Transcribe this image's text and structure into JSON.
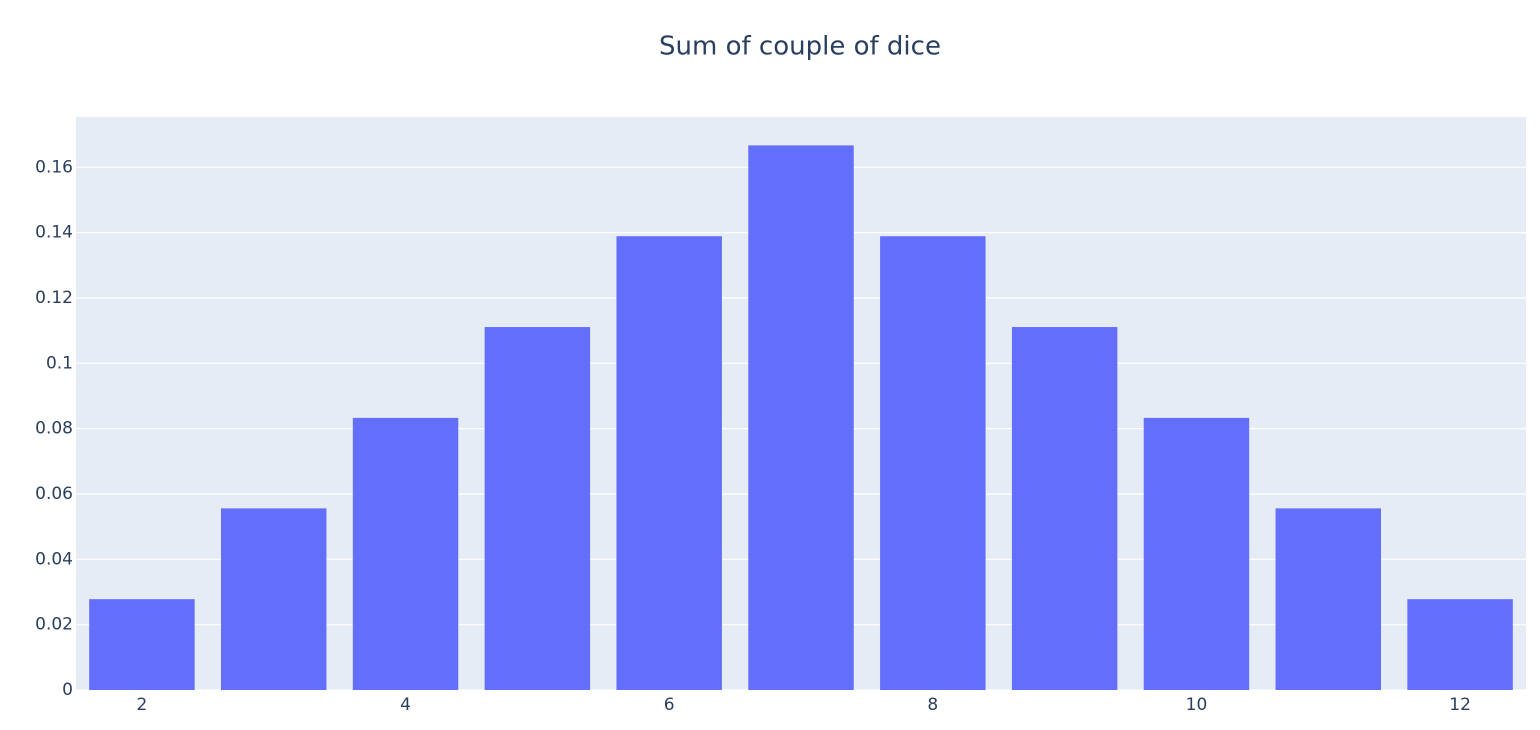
{
  "chart_data": {
    "type": "bar",
    "title": "Sum of couple of dice",
    "x": [
      2,
      3,
      4,
      5,
      6,
      7,
      8,
      9,
      10,
      11,
      12
    ],
    "values": [
      0.0278,
      0.0556,
      0.0833,
      0.1111,
      0.1389,
      0.1667,
      0.1389,
      0.1111,
      0.0833,
      0.0556,
      0.0278
    ],
    "color": "#636efa",
    "xlim": [
      1.5,
      12.5
    ],
    "xticks": [
      2,
      4,
      6,
      8,
      10,
      12
    ],
    "ylim": [
      0,
      0.1754
    ],
    "yticks": [
      0,
      0.02,
      0.04,
      0.06,
      0.08,
      0.1,
      0.12,
      0.14,
      0.16
    ],
    "grid": true
  }
}
